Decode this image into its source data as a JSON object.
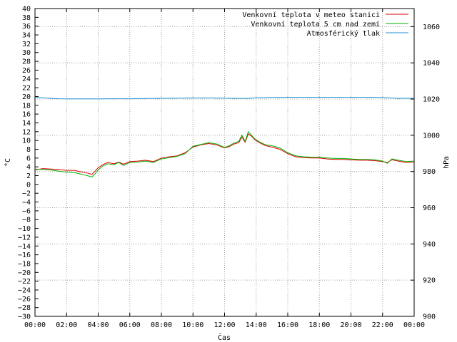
{
  "chart_data": {
    "type": "line",
    "xlabel": "Čas",
    "ylabel_left": "°C",
    "ylabel_right": "hPa",
    "ylim_left": [
      -30,
      40
    ],
    "ylim_right": [
      900,
      1070
    ],
    "xlim": [
      0,
      24
    ],
    "grid": true,
    "legend_position": "top-right",
    "x_ticks": [
      "00:00",
      "02:00",
      "04:00",
      "06:00",
      "08:00",
      "10:00",
      "12:00",
      "14:00",
      "16:00",
      "18:00",
      "20:00",
      "22:00",
      "00:00"
    ],
    "y_left_ticks": [
      40,
      38,
      36,
      34,
      32,
      30,
      28,
      26,
      24,
      22,
      20,
      18,
      16,
      14,
      12,
      10,
      8,
      6,
      4,
      2,
      0,
      -2,
      -4,
      -6,
      -8,
      -10,
      -12,
      -14,
      -16,
      -18,
      -20,
      -22,
      -24,
      -26,
      -28,
      -30
    ],
    "y_right_ticks": [
      1060,
      1040,
      1020,
      1000,
      980,
      960,
      940,
      920,
      900
    ],
    "series": [
      {
        "name": "Venkovní teplota v meteo stanici",
        "axis": "left",
        "color": "#e00000",
        "x": [
          0,
          0.5,
          1,
          1.5,
          2,
          2.5,
          3,
          3.3,
          3.6,
          3.8,
          4,
          4.3,
          4.6,
          5,
          5.3,
          5.6,
          6,
          6.5,
          7,
          7.5,
          8,
          8.5,
          9,
          9.5,
          10,
          10.5,
          11,
          11.5,
          12,
          12.3,
          12.6,
          12.9,
          13.1,
          13.3,
          13.5,
          13.7,
          13.9,
          14.2,
          14.6,
          15,
          15.5,
          16,
          16.5,
          17,
          17.5,
          18,
          18.5,
          19,
          19.5,
          20,
          20.5,
          21,
          21.5,
          22,
          22.3,
          22.6,
          23,
          23.5,
          24
        ],
        "y": [
          3.3,
          3.6,
          3.5,
          3.4,
          3.2,
          3.2,
          2.8,
          2.6,
          2.3,
          3.0,
          3.8,
          4.5,
          5.0,
          4.7,
          5.1,
          4.6,
          5.2,
          5.3,
          5.5,
          5.2,
          6.0,
          6.3,
          6.5,
          7.2,
          8.5,
          9.0,
          9.3,
          9.0,
          8.3,
          8.6,
          9.2,
          9.5,
          10.8,
          9.6,
          11.5,
          11.0,
          10.2,
          9.5,
          8.8,
          8.5,
          8.0,
          7.0,
          6.3,
          6.1,
          6.0,
          6.0,
          5.8,
          5.7,
          5.7,
          5.6,
          5.5,
          5.5,
          5.4,
          5.2,
          5.0,
          5.6,
          5.3,
          5.0,
          5.1
        ]
      },
      {
        "name": "Venkovní teplota 5 cm nad zemí",
        "axis": "left",
        "color": "#00b000",
        "x": [
          0,
          0.5,
          1,
          1.5,
          2,
          2.5,
          3,
          3.3,
          3.6,
          3.8,
          4,
          4.3,
          4.6,
          5,
          5.3,
          5.6,
          6,
          6.5,
          7,
          7.5,
          8,
          8.5,
          9,
          9.5,
          10,
          10.5,
          11,
          11.5,
          12,
          12.3,
          12.6,
          12.9,
          13.1,
          13.3,
          13.5,
          13.7,
          13.9,
          14.2,
          14.6,
          15,
          15.5,
          16,
          16.5,
          17,
          17.5,
          18,
          18.5,
          19,
          19.5,
          20,
          20.5,
          21,
          21.5,
          22,
          22.3,
          22.6,
          23,
          23.5,
          24
        ],
        "y": [
          3.5,
          3.4,
          3.3,
          3.0,
          2.8,
          2.7,
          2.3,
          2.0,
          1.7,
          2.4,
          3.3,
          4.2,
          4.7,
          4.5,
          5.0,
          4.3,
          5.0,
          5.1,
          5.3,
          5.0,
          5.8,
          6.1,
          6.4,
          7.0,
          8.7,
          9.1,
          9.5,
          9.2,
          8.4,
          8.8,
          9.4,
          9.8,
          11.2,
          9.8,
          12.0,
          11.2,
          10.4,
          9.7,
          9.0,
          8.8,
          8.3,
          7.2,
          6.5,
          6.3,
          6.2,
          6.2,
          6.0,
          5.9,
          5.9,
          5.8,
          5.7,
          5.7,
          5.6,
          5.3,
          4.8,
          5.8,
          5.5,
          5.2,
          5.3
        ]
      },
      {
        "name": "Atmosférický tlak",
        "axis": "right",
        "color": "#2090d0",
        "x": [
          0,
          0.5,
          1,
          1.5,
          2,
          3,
          4,
          5,
          6,
          7,
          8,
          9,
          10,
          11,
          12,
          12.5,
          13,
          13.5,
          14,
          15,
          16,
          17,
          18,
          19,
          20,
          21,
          22,
          22.5,
          23,
          24
        ],
        "y": [
          1021.0,
          1020.7,
          1020.4,
          1020.2,
          1020.1,
          1020.1,
          1020.1,
          1020.2,
          1020.2,
          1020.3,
          1020.4,
          1020.5,
          1020.6,
          1020.6,
          1020.5,
          1020.4,
          1020.3,
          1020.4,
          1020.7,
          1020.9,
          1021.0,
          1021.0,
          1021.0,
          1021.0,
          1021.0,
          1021.0,
          1020.9,
          1020.6,
          1020.4,
          1020.4
        ]
      }
    ]
  }
}
